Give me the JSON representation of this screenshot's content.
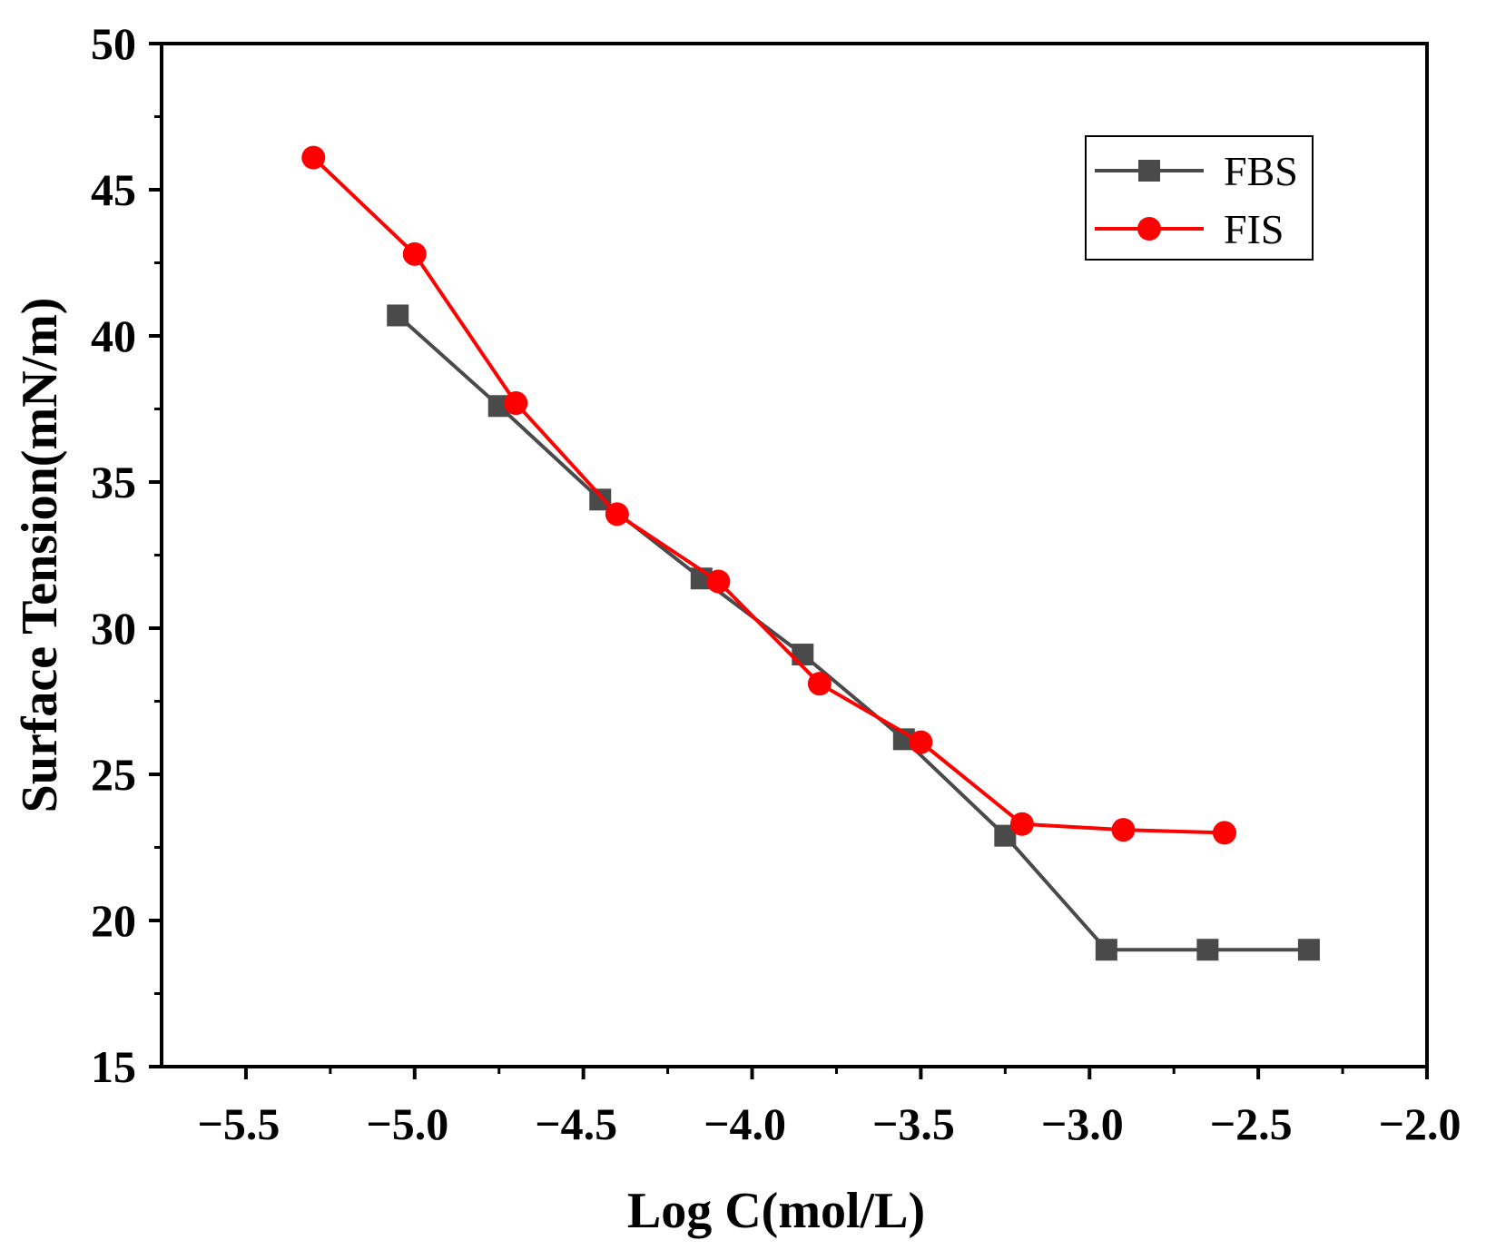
{
  "chart_data": {
    "type": "line",
    "xlabel": "Log C(mol/L)",
    "ylabel": "Surface Tension(mN/m)",
    "xlim": [
      -5.75,
      -2.0
    ],
    "ylim": [
      15,
      50
    ],
    "x_ticks": [
      -5.5,
      -5.0,
      -4.5,
      -4.0,
      -3.5,
      -3.0,
      -2.5,
      -2.0
    ],
    "x_tick_labels": [
      "−5.5",
      "−5.0",
      "−4.5",
      "−4.0",
      "−3.5",
      "−3.0",
      "−2.5",
      "−2.0"
    ],
    "y_ticks": [
      15,
      20,
      25,
      30,
      35,
      40,
      45,
      50
    ],
    "y_tick_labels": [
      "15",
      "20",
      "25",
      "30",
      "35",
      "40",
      "45",
      "50"
    ],
    "grid": false,
    "legend_position": "top-right",
    "series": [
      {
        "name": "FBS",
        "color": "#4a4a4a",
        "marker": "square",
        "x": [
          -5.05,
          -4.75,
          -4.45,
          -4.15,
          -3.85,
          -3.55,
          -3.25,
          -2.95,
          -2.65,
          -2.35
        ],
        "y": [
          40.7,
          37.6,
          34.4,
          31.7,
          29.1,
          26.2,
          22.9,
          19.0,
          19.0,
          19.0
        ]
      },
      {
        "name": "FIS",
        "color": "#ff0000",
        "marker": "circle",
        "x": [
          -5.3,
          -5.0,
          -4.7,
          -4.4,
          -4.1,
          -3.8,
          -3.5,
          -3.2,
          -2.9,
          -2.6
        ],
        "y": [
          46.1,
          42.8,
          37.7,
          33.9,
          31.6,
          28.1,
          26.1,
          23.3,
          23.1,
          23.0
        ]
      }
    ]
  }
}
